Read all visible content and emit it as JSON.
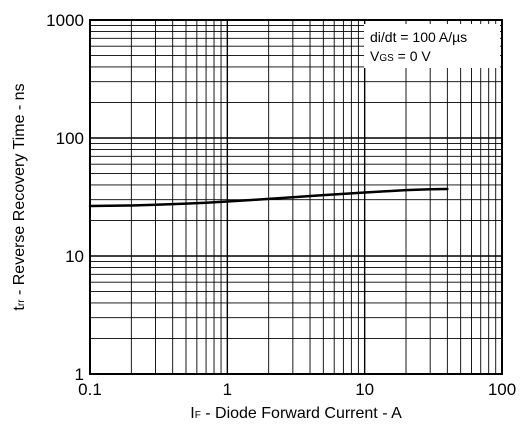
{
  "chart_data": {
    "type": "line",
    "x_scale": "log",
    "y_scale": "log",
    "xlim": [
      0.1,
      100
    ],
    "ylim": [
      1,
      1000
    ],
    "grid": true,
    "xticks": [
      "0.1",
      "1",
      "10",
      "100"
    ],
    "yticks": [
      "1",
      "10",
      "100",
      "1000"
    ],
    "xlabel": {
      "main": "I",
      "sub": "F",
      "rest": " - Diode Forward Current - A"
    },
    "ylabel": {
      "main": "t",
      "sub": "rr",
      "rest": " - Reverse Recovery Time - ns"
    },
    "annotation": {
      "line1": "di/dt = 100 A/µs",
      "line2_main": "V",
      "line2_sub": "GS",
      "line2_rest": " = 0 V"
    },
    "series": [
      {
        "x": [
          0.1,
          0.2,
          0.3,
          0.5,
          0.7,
          1,
          1.5,
          2,
          3,
          5,
          7,
          10,
          15,
          20,
          30,
          40
        ],
        "values": [
          26.5,
          26.8,
          27.2,
          27.8,
          28.3,
          29,
          29.8,
          30.5,
          31.5,
          32.8,
          33.6,
          34.5,
          35.5,
          36.2,
          36.8,
          37
        ]
      }
    ]
  }
}
